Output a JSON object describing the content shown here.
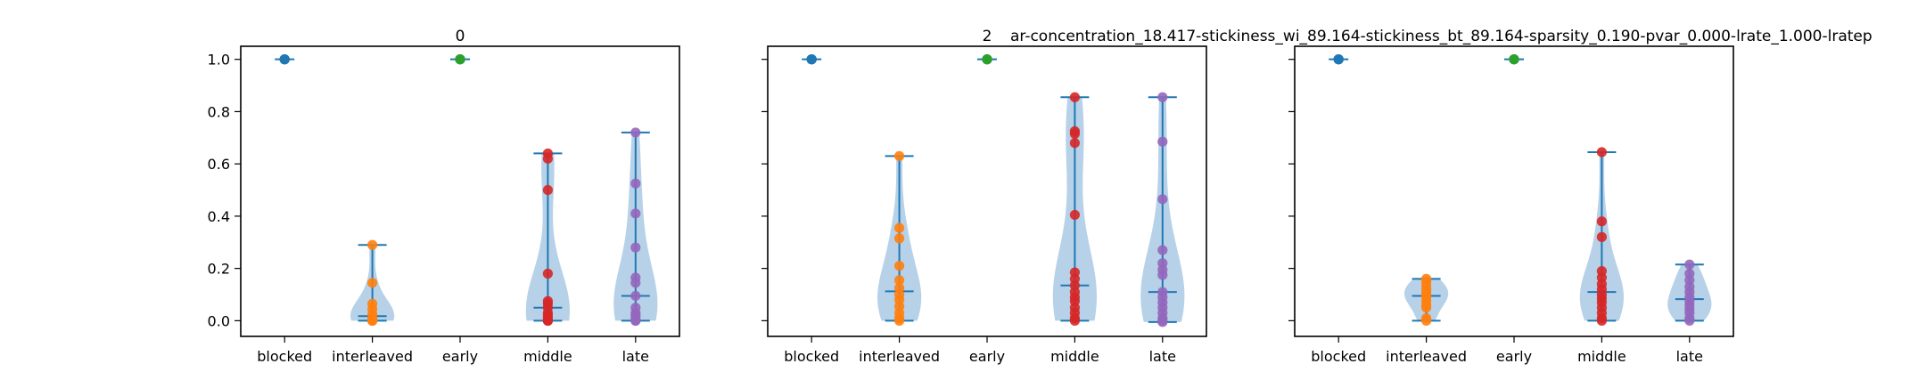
{
  "figure": {
    "suptitle": "ar-concentration_18.417-stickiness_wi_89.164-stickiness_bt_89.164-sparsity_0.190-pvar_0.000-lrate_1.000-lratep"
  },
  "colors": {
    "blocked": "#1f77b4",
    "interleaved": "#ff7f0e",
    "early": "#2ca02c",
    "middle": "#d62728",
    "late": "#9467bd",
    "violin_fill": "#9fc3e0",
    "violin_line": "#1f77b4",
    "axis": "#000000"
  },
  "chart_data": [
    {
      "type": "violin",
      "title": "0",
      "categories": [
        "blocked",
        "interleaved",
        "early",
        "middle",
        "late"
      ],
      "ylim": [
        -0.06,
        1.05
      ],
      "yticks": [
        0.0,
        0.2,
        0.4,
        0.6,
        0.8,
        1.0
      ],
      "ytick_labels": [
        "0.0",
        "0.2",
        "0.4",
        "0.6",
        "0.8",
        "1.0"
      ],
      "show_ytick_labels": true,
      "series": [
        {
          "name": "blocked",
          "values": [
            1.0,
            1.0,
            1.0,
            1.0,
            1.0
          ]
        },
        {
          "name": "interleaved",
          "values": [
            0.29,
            0.145,
            0.065,
            0.045,
            0.025,
            0.01,
            0.005,
            0.0,
            0.0,
            0.0
          ]
        },
        {
          "name": "early",
          "values": [
            1.0,
            1.0,
            1.0,
            1.0,
            1.0
          ]
        },
        {
          "name": "middle",
          "values": [
            0.64,
            0.62,
            0.5,
            0.18,
            0.075,
            0.065,
            0.05,
            0.03,
            0.02,
            0.01,
            0.0,
            0.0,
            0.0
          ]
        },
        {
          "name": "late",
          "values": [
            0.72,
            0.525,
            0.41,
            0.28,
            0.165,
            0.145,
            0.095,
            0.05,
            0.03,
            0.02,
            0.01,
            0.0,
            0.0
          ]
        }
      ]
    },
    {
      "type": "violin",
      "title": "2",
      "categories": [
        "blocked",
        "interleaved",
        "early",
        "middle",
        "late"
      ],
      "ylim": [
        -0.06,
        1.05
      ],
      "yticks": [
        0.0,
        0.2,
        0.4,
        0.6,
        0.8,
        1.0
      ],
      "ytick_labels": [
        "0.0",
        "0.2",
        "0.4",
        "0.6",
        "0.8",
        "1.0"
      ],
      "show_ytick_labels": false,
      "series": [
        {
          "name": "blocked",
          "values": [
            1.0,
            1.0,
            1.0,
            1.0,
            1.0
          ]
        },
        {
          "name": "interleaved",
          "values": [
            0.63,
            0.355,
            0.315,
            0.21,
            0.155,
            0.125,
            0.1,
            0.08,
            0.055,
            0.03,
            0.01,
            0.0
          ]
        },
        {
          "name": "early",
          "values": [
            1.0,
            1.0,
            1.0,
            1.0,
            1.0
          ]
        },
        {
          "name": "middle",
          "values": [
            0.855,
            0.725,
            0.715,
            0.68,
            0.405,
            0.185,
            0.16,
            0.135,
            0.11,
            0.09,
            0.075,
            0.05,
            0.03,
            0.01,
            0.0
          ]
        },
        {
          "name": "late",
          "values": [
            0.855,
            0.685,
            0.465,
            0.27,
            0.22,
            0.195,
            0.175,
            0.11,
            0.09,
            0.07,
            0.05,
            0.03,
            0.01,
            0.0,
            -0.005
          ]
        }
      ]
    },
    {
      "type": "violin",
      "title": "",
      "categories": [
        "blocked",
        "interleaved",
        "early",
        "middle",
        "late"
      ],
      "ylim": [
        -0.06,
        1.05
      ],
      "yticks": [
        0.0,
        0.2,
        0.4,
        0.6,
        0.8,
        1.0
      ],
      "ytick_labels": [
        "0.0",
        "0.2",
        "0.4",
        "0.6",
        "0.8",
        "1.0"
      ],
      "show_ytick_labels": false,
      "series": [
        {
          "name": "blocked",
          "values": [
            1.0,
            1.0,
            1.0,
            1.0,
            1.0
          ]
        },
        {
          "name": "interleaved",
          "values": [
            0.16,
            0.15,
            0.135,
            0.12,
            0.11,
            0.1,
            0.09,
            0.075,
            0.06,
            0.05,
            0.01,
            0.0
          ]
        },
        {
          "name": "early",
          "values": [
            1.0,
            1.0,
            1.0,
            1.0,
            1.0
          ]
        },
        {
          "name": "middle",
          "values": [
            0.645,
            0.38,
            0.32,
            0.19,
            0.165,
            0.14,
            0.12,
            0.1,
            0.085,
            0.07,
            0.05,
            0.03,
            0.01,
            0.0
          ]
        },
        {
          "name": "late",
          "values": [
            0.215,
            0.18,
            0.155,
            0.13,
            0.11,
            0.09,
            0.075,
            0.06,
            0.045,
            0.03,
            0.01,
            0.0
          ]
        }
      ]
    }
  ]
}
